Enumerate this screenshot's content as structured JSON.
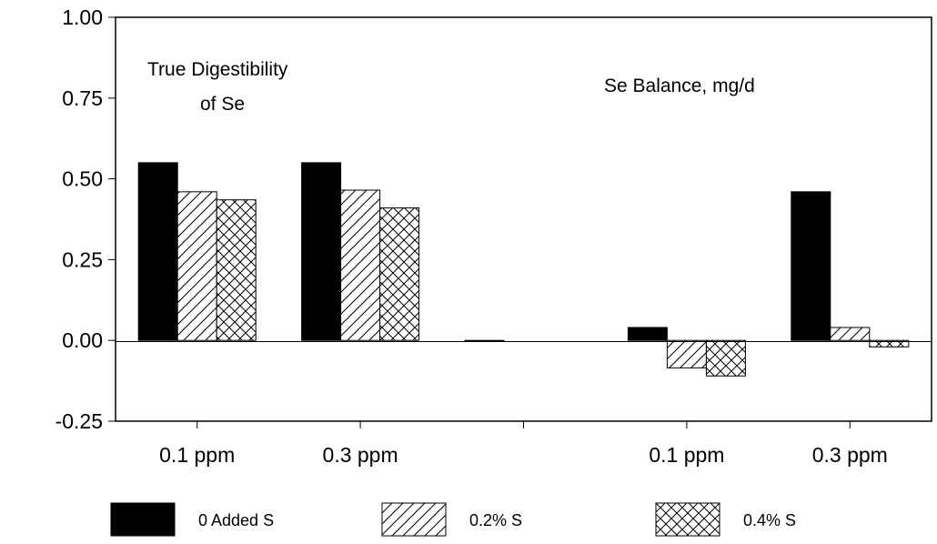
{
  "chart_data": {
    "type": "bar",
    "ylim": [
      -0.25,
      1.0
    ],
    "yticks": [
      "1.00",
      "0.75",
      "0.50",
      "0.25",
      "0.00",
      "-0.25"
    ],
    "categories": [
      "0.1 ppm",
      "0.3 ppm",
      "",
      "0.1 ppm",
      "0.3 ppm"
    ],
    "series": [
      {
        "name": "0 Added S",
        "pattern": "solid",
        "values": [
          0.55,
          0.55,
          0.0,
          0.04,
          0.46
        ]
      },
      {
        "name": "0.2% S",
        "pattern": "hatch",
        "values": [
          0.46,
          0.465,
          null,
          -0.085,
          0.04
        ]
      },
      {
        "name": "0.4% S",
        "pattern": "crosshatch",
        "values": [
          0.435,
          0.41,
          null,
          -0.11,
          -0.02
        ]
      }
    ],
    "annotations": [
      {
        "lines": [
          "True Digestibility",
          "of Se"
        ]
      },
      {
        "lines": [
          "Se Balance, mg/d"
        ]
      }
    ],
    "grid": false,
    "legend_position": "bottom",
    "colors": {
      "bar": "#000000",
      "background": "#ffffff"
    }
  }
}
